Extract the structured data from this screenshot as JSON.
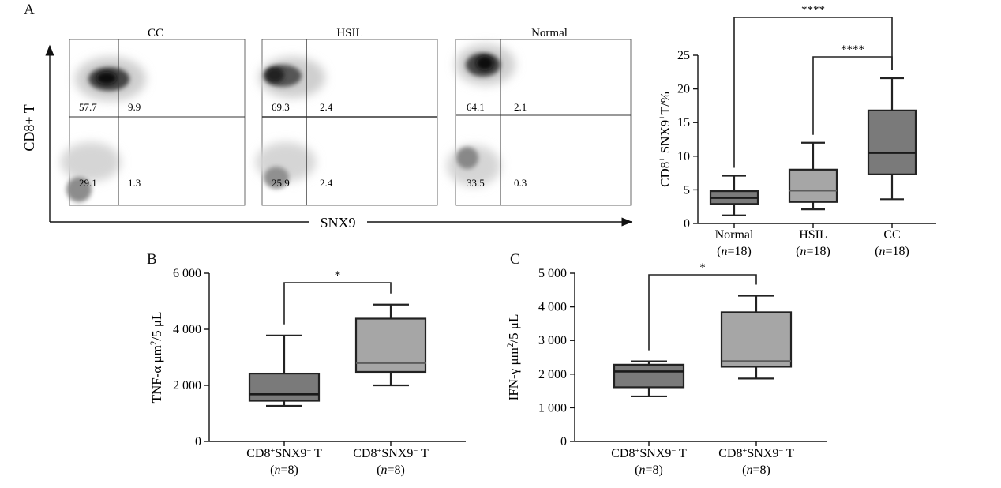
{
  "panels": {
    "A": "A",
    "B": "B",
    "C": "C"
  },
  "flow": {
    "xlabel": "SNX9",
    "ylabel": "CD8+ T",
    "plots": [
      {
        "title": "CC",
        "q": [
          "57.7",
          "9.9",
          "29.1",
          "1.3"
        ]
      },
      {
        "title": "HSIL",
        "q": [
          "69.3",
          "2.4",
          "25.9",
          "2.4"
        ]
      },
      {
        "title": "Normal",
        "q": [
          "64.1",
          "2.1",
          "33.5",
          "0.3"
        ]
      }
    ]
  },
  "chart_data": [
    {
      "type": "box",
      "panel": "A",
      "ylabel": "CD8+ SNX9+T/%",
      "ylim": [
        0,
        25
      ],
      "yticks": [
        "0",
        "5",
        "10",
        "15",
        "20",
        "25"
      ],
      "categories": [
        "Normal",
        "HSIL",
        "CC"
      ],
      "sublabels": [
        "(n=18)",
        "(n=18)",
        "(n=18)"
      ],
      "boxes": [
        {
          "min": 1.2,
          "q1": 2.9,
          "median": 3.8,
          "q3": 4.8,
          "max": 7.1,
          "color": "#7a7a7a"
        },
        {
          "min": 2.1,
          "q1": 3.2,
          "median": 4.9,
          "q3": 8.0,
          "max": 12.0,
          "color": "#a6a6a6"
        },
        {
          "min": 3.6,
          "q1": 7.3,
          "median": 10.5,
          "q3": 16.8,
          "max": 21.6,
          "color": "#7a7a7a"
        }
      ],
      "significance": [
        {
          "from": 0,
          "to": 2,
          "label": "****"
        },
        {
          "from": 1,
          "to": 2,
          "label": "****"
        }
      ]
    },
    {
      "type": "box",
      "panel": "B",
      "ylabel": "TNF-α μm2/5 μL",
      "ylim": [
        0,
        6000
      ],
      "yticks": [
        "0",
        "2 000",
        "4 000",
        "6 000"
      ],
      "categories": [
        "CD8+SNX9− T",
        "CD8+SNX9− T"
      ],
      "sublabels": [
        "(n=8)",
        "(n=8)"
      ],
      "boxes": [
        {
          "min": 1270,
          "q1": 1450,
          "median": 1680,
          "q3": 2420,
          "max": 3780,
          "color": "#7a7a7a"
        },
        {
          "min": 2000,
          "q1": 2480,
          "median": 2800,
          "q3": 4380,
          "max": 4880,
          "color": "#a6a6a6"
        }
      ],
      "significance": [
        {
          "from": 0,
          "to": 1,
          "label": "*"
        }
      ]
    },
    {
      "type": "box",
      "panel": "C",
      "ylabel": "IFN-γ μm2/5 μL",
      "ylim": [
        0,
        5000
      ],
      "yticks": [
        "0",
        "1 000",
        "2 000",
        "3 000",
        "4 000",
        "5 000"
      ],
      "categories": [
        "CD8+SNX9− T",
        "CD8+SNX9− T"
      ],
      "sublabels": [
        "(n=8)",
        "(n=8)"
      ],
      "boxes": [
        {
          "min": 1340,
          "q1": 1610,
          "median": 2080,
          "q3": 2280,
          "max": 2380,
          "color": "#7a7a7a"
        },
        {
          "min": 1870,
          "q1": 2220,
          "median": 2380,
          "q3": 3840,
          "max": 4330,
          "color": "#a6a6a6"
        }
      ],
      "significance": [
        {
          "from": 0,
          "to": 1,
          "label": "*"
        }
      ]
    }
  ]
}
